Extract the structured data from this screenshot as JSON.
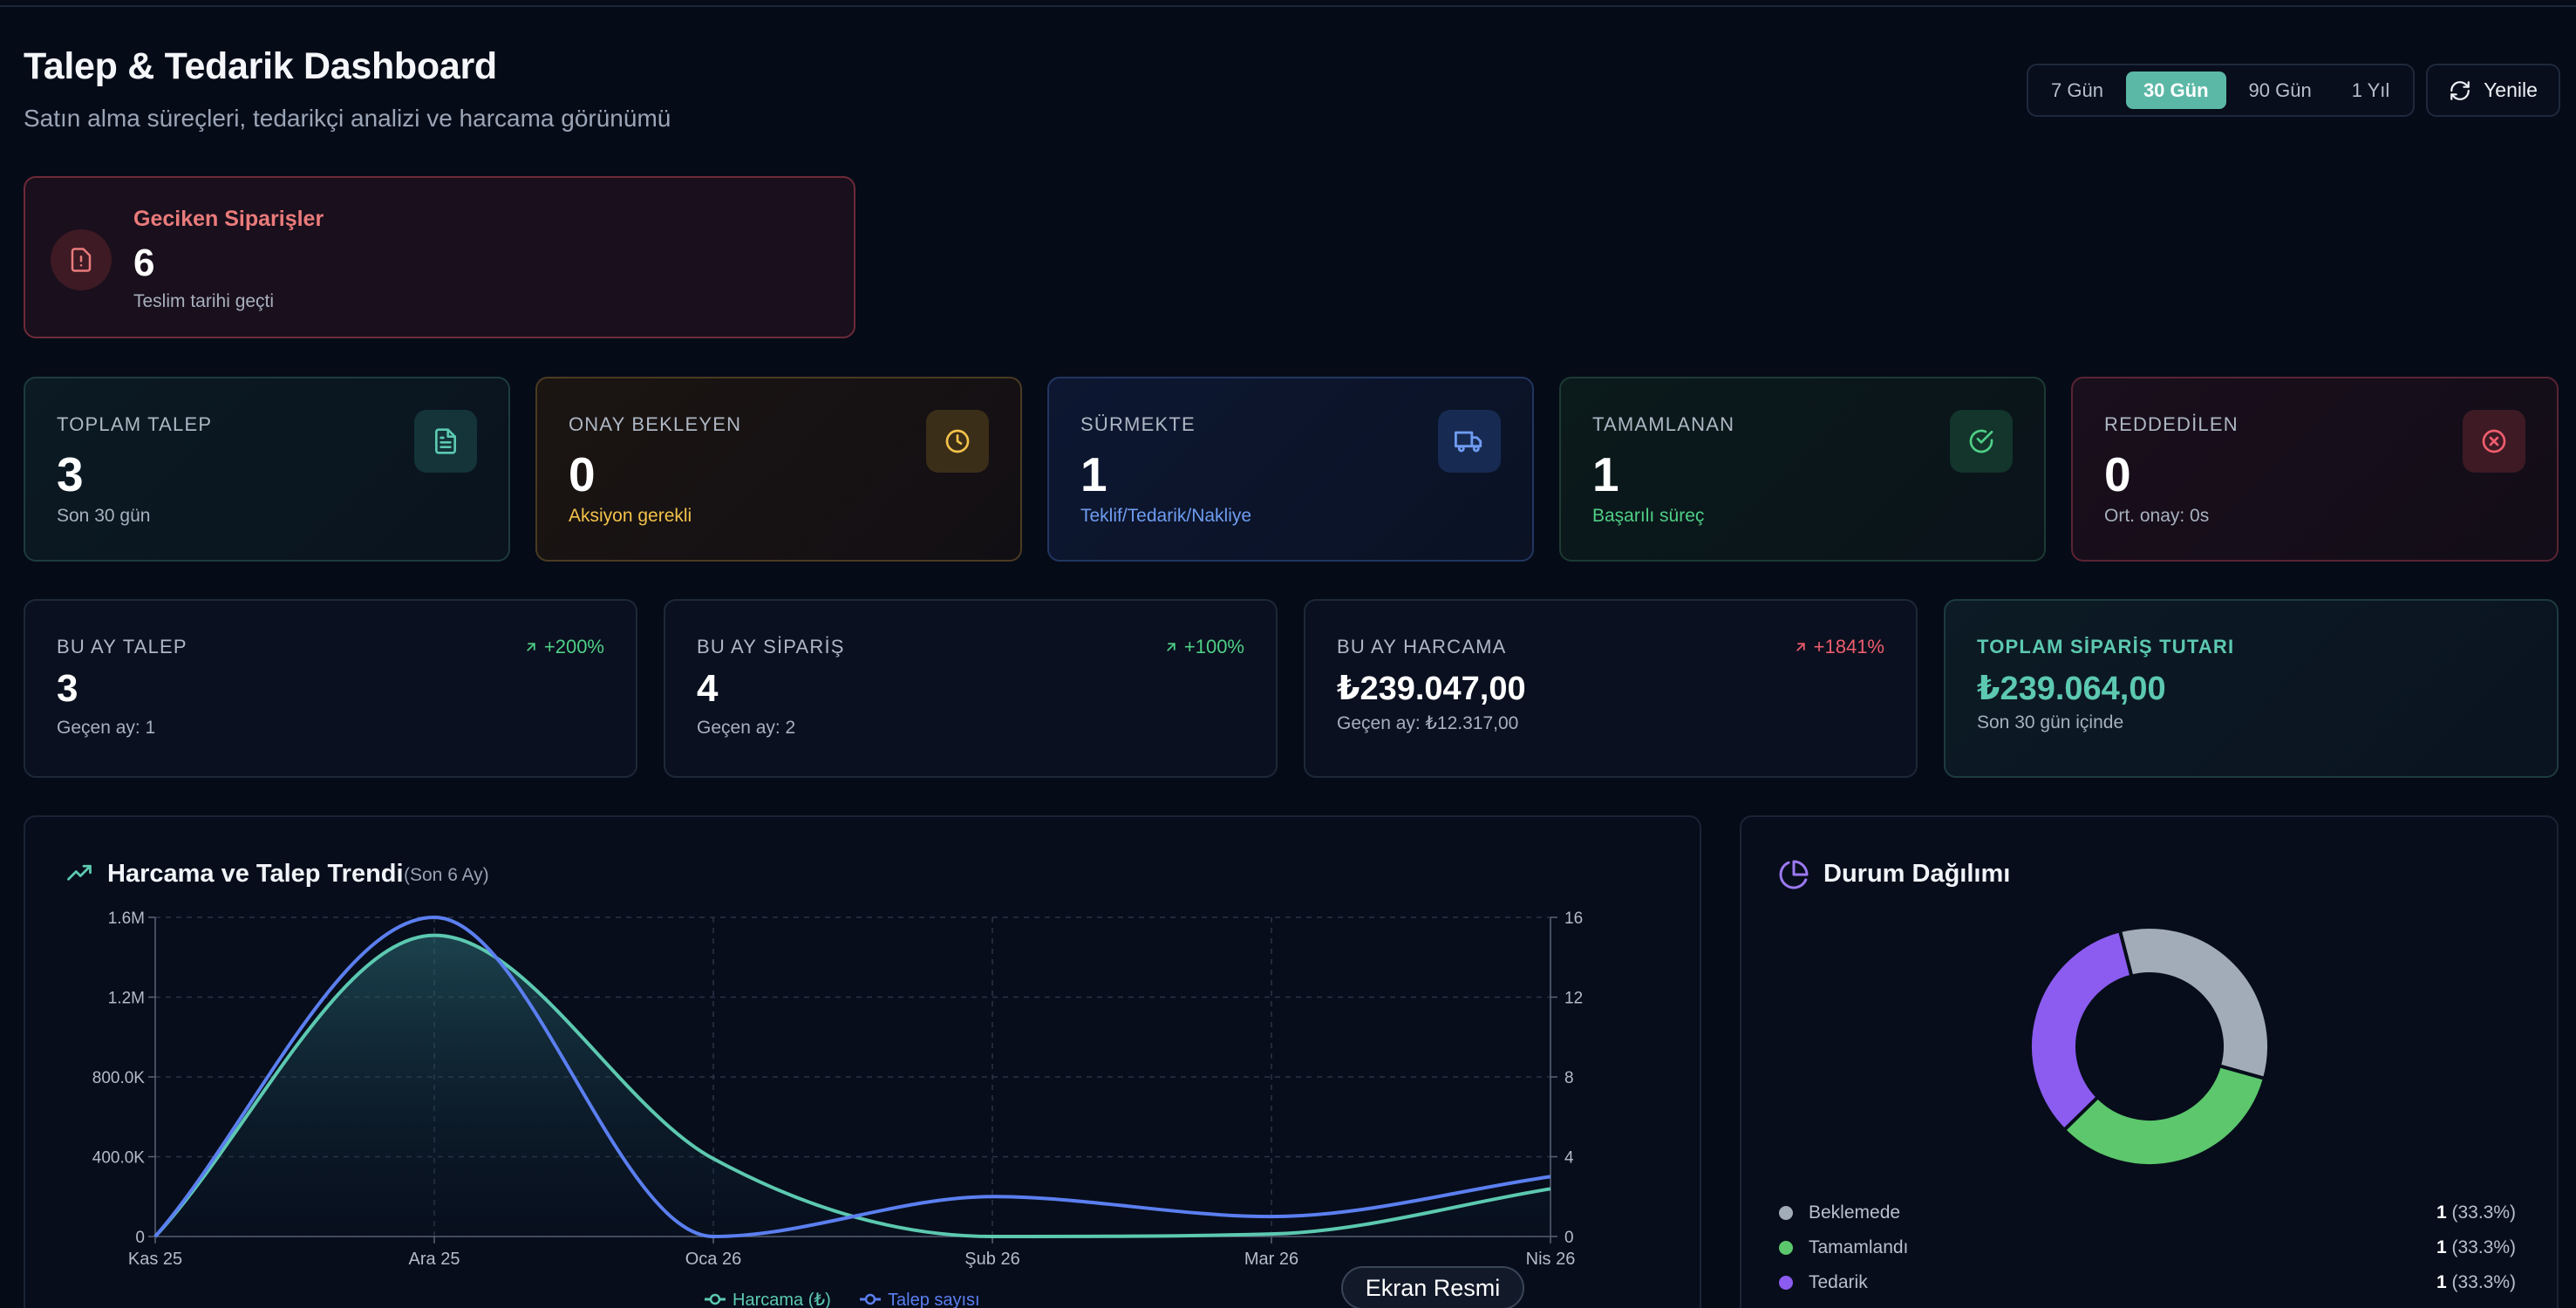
{
  "header": {
    "title": "Talep & Tedarik Dashboard",
    "subtitle": "Satın alma süreçleri, tedarikçi analizi ve harcama görünümü"
  },
  "toolbar": {
    "ranges": [
      "7 Gün",
      "30 Gün",
      "90 Gün",
      "1 Yıl"
    ],
    "active_range": "30 Gün",
    "refresh_label": "Yenile"
  },
  "alert": {
    "title": "Geciken Siparişler",
    "value": "6",
    "subtitle": "Teslim tarihi geçti"
  },
  "stats": [
    {
      "label": "TOPLAM TALEP",
      "value": "3",
      "subtitle": "Son 30 gün",
      "icon": "document-icon",
      "accent": "#5cc9b0"
    },
    {
      "label": "ONAY BEKLEYEN",
      "value": "0",
      "subtitle": "Aksiyon gerekli",
      "icon": "clock-icon",
      "accent": "#f3c24b"
    },
    {
      "label": "SÜRMEKTE",
      "value": "1",
      "subtitle": "Teklif/Tedarik/Nakliye",
      "icon": "truck-icon",
      "accent": "#6f9cf0"
    },
    {
      "label": "TAMAMLANAN",
      "value": "1",
      "subtitle": "Başarılı süreç",
      "icon": "check-circle-icon",
      "accent": "#4fcf86"
    },
    {
      "label": "REDDEDİLEN",
      "value": "0",
      "subtitle": "Ort. onay: 0s",
      "icon": "x-circle-icon",
      "accent": "#ef5d6d"
    }
  ],
  "kpis": [
    {
      "label": "BU AY TALEP",
      "value": "3",
      "subtitle": "Geçen ay: 1",
      "delta": "+200%",
      "delta_color": "#4fcf86"
    },
    {
      "label": "BU AY SİPARİŞ",
      "value": "4",
      "subtitle": "Geçen ay: 2",
      "delta": "+100%",
      "delta_color": "#4fcf86"
    },
    {
      "label": "BU AY HARCAMA",
      "value": "₺239.047,00",
      "subtitle": "Geçen ay: ₺12.317,00",
      "delta": "+1841%",
      "delta_color": "#ef5d6d"
    },
    {
      "label": "TOPLAM SİPARİŞ TUTARI",
      "value": "₺239.064,00",
      "subtitle": "Son 30 gün içinde",
      "delta": "",
      "delta_color": ""
    }
  ],
  "trend_panel": {
    "title": "Harcama ve Talep Trendi",
    "note": "(Son 6 Ay)"
  },
  "status_panel": {
    "title": "Durum Dağılımı"
  },
  "chart_data": [
    {
      "type": "area",
      "title": "Harcama ve Talep Trendi",
      "subtitle": "(Son 6 Ay)",
      "categories": [
        "Kas 25",
        "Ara 25",
        "Oca 26",
        "Şub 26",
        "Mar 26",
        "Nis 26"
      ],
      "y_left_ticks": [
        "0",
        "400.0K",
        "800.0K",
        "1.2M",
        "1.6M"
      ],
      "y_left_lim": [
        0,
        1600000
      ],
      "y_right_ticks": [
        "0",
        "4",
        "8",
        "12",
        "16"
      ],
      "y_right_lim": [
        0,
        16
      ],
      "grid": true,
      "series": [
        {
          "name": "Harcama (₺)",
          "axis": "left",
          "color": "#5cc9b0",
          "values": [
            0,
            1510000,
            390000,
            0,
            12317,
            239047
          ]
        },
        {
          "name": "Talep sayısı",
          "axis": "right",
          "color": "#5b7ff0",
          "values": [
            0,
            16,
            0,
            2,
            1,
            3
          ]
        }
      ],
      "legend_position": "bottom"
    },
    {
      "type": "pie",
      "title": "Durum Dağılımı",
      "slices": [
        {
          "label": "Beklemede",
          "value": 1,
          "percent": "(33.3%)",
          "color": "#a2abb8"
        },
        {
          "label": "Tamamlandı",
          "value": 1,
          "percent": "(33.3%)",
          "color": "#5cc76c"
        },
        {
          "label": "Tedarik",
          "value": 1,
          "percent": "(33.3%)",
          "color": "#8c5cf0"
        }
      ]
    }
  ],
  "tooltip": {
    "label": "Ekran Resmi"
  }
}
